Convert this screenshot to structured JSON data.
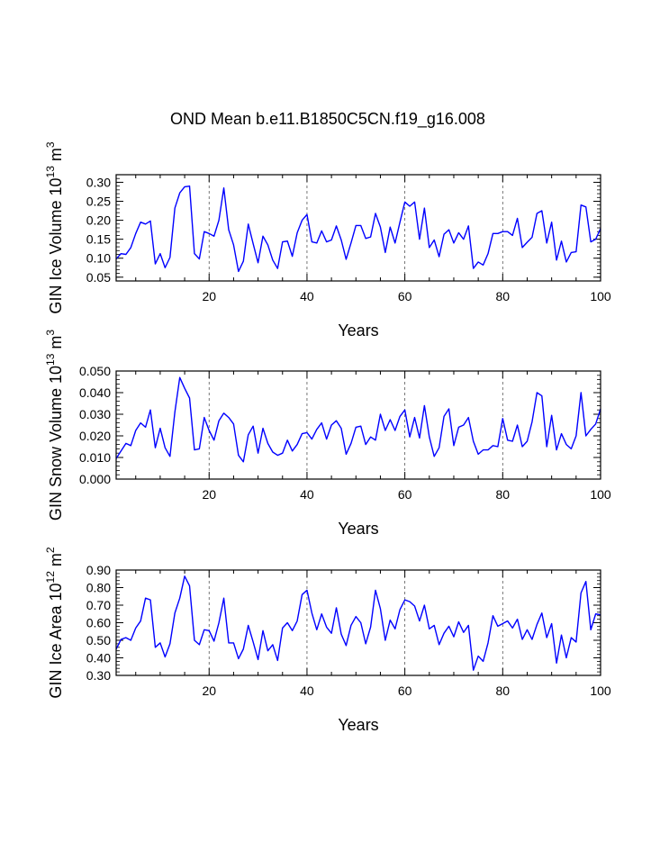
{
  "title": "OND Mean b.e11.B1850C5CN.f19_g16.008",
  "line_color": "#0000ff",
  "chart_data": [
    {
      "type": "line",
      "title": "OND Mean b.e11.B1850C5CN.f19_g16.008",
      "xlabel": "Years",
      "ylabel_base": "GIN Ice Volume 10",
      "ylabel_sup1": "13",
      "ylabel_unit": " m",
      "ylabel_sup2": "3",
      "xlim": [
        1,
        100
      ],
      "ylim": [
        0.04,
        0.32
      ],
      "yticks": [
        0.05,
        0.1,
        0.15,
        0.2,
        0.25,
        0.3
      ],
      "ytick_labels": [
        "0.05",
        "0.10",
        "0.15",
        "0.20",
        "0.25",
        "0.30"
      ],
      "xticks": [
        20,
        40,
        60,
        80,
        100
      ],
      "xtick_labels": [
        "20",
        "40",
        "60",
        "80",
        "100"
      ],
      "gridlines_x": [
        20,
        40,
        60,
        80
      ],
      "values": [
        0.098,
        0.112,
        0.11,
        0.128,
        0.165,
        0.195,
        0.19,
        0.198,
        0.085,
        0.112,
        0.075,
        0.102,
        0.232,
        0.272,
        0.288,
        0.29,
        0.112,
        0.098,
        0.17,
        0.165,
        0.158,
        0.2,
        0.285,
        0.175,
        0.135,
        0.065,
        0.092,
        0.19,
        0.138,
        0.088,
        0.158,
        0.135,
        0.095,
        0.073,
        0.143,
        0.145,
        0.105,
        0.167,
        0.2,
        0.215,
        0.143,
        0.14,
        0.172,
        0.143,
        0.148,
        0.185,
        0.148,
        0.097,
        0.14,
        0.186,
        0.186,
        0.152,
        0.156,
        0.218,
        0.182,
        0.115,
        0.182,
        0.14,
        0.195,
        0.248,
        0.237,
        0.248,
        0.15,
        0.232,
        0.128,
        0.148,
        0.104,
        0.163,
        0.175,
        0.14,
        0.167,
        0.15,
        0.185,
        0.073,
        0.09,
        0.082,
        0.112,
        0.165,
        0.165,
        0.17,
        0.17,
        0.16,
        0.205,
        0.128,
        0.142,
        0.155,
        0.218,
        0.225,
        0.14,
        0.195,
        0.095,
        0.145,
        0.09,
        0.115,
        0.117,
        0.24,
        0.235,
        0.143,
        0.15,
        0.178
      ]
    },
    {
      "type": "line",
      "xlabel": "Years",
      "ylabel_base": "GIN Snow Volume 10",
      "ylabel_sup1": "13",
      "ylabel_unit": " m",
      "ylabel_sup2": "3",
      "xlim": [
        1,
        100
      ],
      "ylim": [
        0.0,
        0.05
      ],
      "yticks": [
        0.0,
        0.01,
        0.02,
        0.03,
        0.04,
        0.05
      ],
      "ytick_labels": [
        "0.000",
        "0.010",
        "0.020",
        "0.030",
        "0.040",
        "0.050"
      ],
      "xticks": [
        20,
        40,
        60,
        80,
        100
      ],
      "xtick_labels": [
        "20",
        "40",
        "60",
        "80",
        "100"
      ],
      "gridlines_x": [
        20,
        40,
        60,
        80
      ],
      "values": [
        0.0095,
        0.013,
        0.0165,
        0.0155,
        0.0225,
        0.026,
        0.024,
        0.032,
        0.0145,
        0.0235,
        0.0145,
        0.0105,
        0.031,
        0.047,
        0.042,
        0.0375,
        0.0135,
        0.014,
        0.0285,
        0.0225,
        0.018,
        0.027,
        0.0305,
        0.0285,
        0.0255,
        0.011,
        0.008,
        0.0205,
        0.0245,
        0.012,
        0.0235,
        0.0165,
        0.0125,
        0.011,
        0.012,
        0.018,
        0.013,
        0.016,
        0.021,
        0.0215,
        0.0185,
        0.023,
        0.026,
        0.0185,
        0.025,
        0.027,
        0.0235,
        0.0115,
        0.0165,
        0.024,
        0.0245,
        0.016,
        0.0195,
        0.018,
        0.03,
        0.0225,
        0.0275,
        0.0225,
        0.029,
        0.032,
        0.0195,
        0.0285,
        0.019,
        0.034,
        0.0195,
        0.0105,
        0.0145,
        0.029,
        0.0325,
        0.0155,
        0.024,
        0.025,
        0.0285,
        0.0175,
        0.0115,
        0.0135,
        0.0135,
        0.0155,
        0.015,
        0.028,
        0.018,
        0.0175,
        0.025,
        0.015,
        0.0175,
        0.0265,
        0.04,
        0.0385,
        0.015,
        0.0295,
        0.0135,
        0.021,
        0.016,
        0.014,
        0.02,
        0.04,
        0.02,
        0.023,
        0.0255,
        0.0325
      ]
    },
    {
      "type": "line",
      "xlabel": "Years",
      "ylabel_base": "GIN Ice Area 10",
      "ylabel_sup1": "12",
      "ylabel_unit": " m",
      "ylabel_sup2": "2",
      "xlim": [
        1,
        100
      ],
      "ylim": [
        0.3,
        0.9
      ],
      "yticks": [
        0.3,
        0.4,
        0.5,
        0.6,
        0.7,
        0.8,
        0.9
      ],
      "ytick_labels": [
        "0.30",
        "0.40",
        "0.50",
        "0.60",
        "0.70",
        "0.80",
        "0.90"
      ],
      "xticks": [
        20,
        40,
        60,
        80,
        100
      ],
      "xtick_labels": [
        "20",
        "40",
        "60",
        "80",
        "100"
      ],
      "gridlines_x": [
        20,
        40,
        60,
        80
      ],
      "values": [
        0.45,
        0.505,
        0.515,
        0.5,
        0.57,
        0.61,
        0.74,
        0.73,
        0.46,
        0.485,
        0.405,
        0.48,
        0.655,
        0.74,
        0.865,
        0.81,
        0.5,
        0.475,
        0.56,
        0.555,
        0.495,
        0.6,
        0.74,
        0.485,
        0.485,
        0.395,
        0.45,
        0.585,
        0.49,
        0.39,
        0.555,
        0.44,
        0.475,
        0.385,
        0.57,
        0.6,
        0.555,
        0.61,
        0.76,
        0.785,
        0.655,
        0.56,
        0.65,
        0.575,
        0.54,
        0.685,
        0.535,
        0.47,
        0.585,
        0.635,
        0.6,
        0.48,
        0.575,
        0.785,
        0.68,
        0.5,
        0.615,
        0.565,
        0.675,
        0.73,
        0.72,
        0.695,
        0.61,
        0.7,
        0.565,
        0.585,
        0.475,
        0.54,
        0.58,
        0.52,
        0.605,
        0.545,
        0.585,
        0.33,
        0.41,
        0.38,
        0.485,
        0.64,
        0.58,
        0.595,
        0.61,
        0.57,
        0.62,
        0.505,
        0.56,
        0.505,
        0.59,
        0.655,
        0.515,
        0.595,
        0.37,
        0.53,
        0.4,
        0.515,
        0.49,
        0.77,
        0.835,
        0.56,
        0.65,
        0.645
      ]
    }
  ]
}
